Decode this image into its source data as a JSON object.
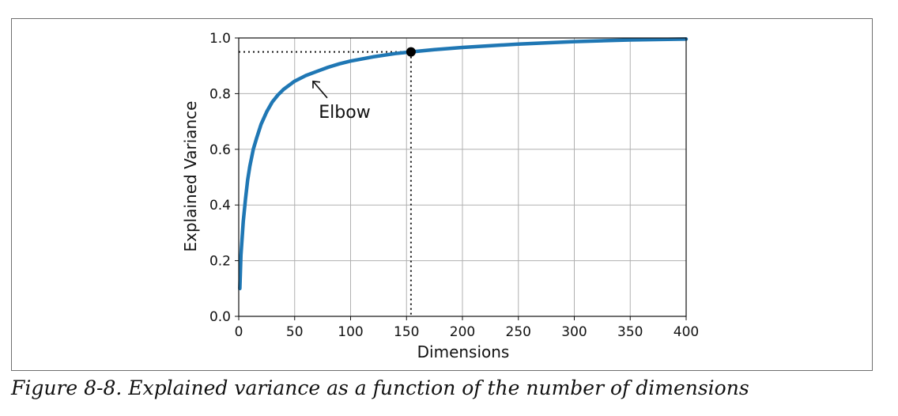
{
  "chart_data": {
    "type": "line",
    "xlabel": "Dimensions",
    "ylabel": "Explained Variance",
    "xlim": [
      0,
      400
    ],
    "ylim": [
      0.0,
      1.0
    ],
    "x_ticks": [
      "0",
      "50",
      "100",
      "150",
      "200",
      "250",
      "300",
      "350",
      "400"
    ],
    "y_ticks": [
      "0.0",
      "0.2",
      "0.4",
      "0.6",
      "0.8",
      "1.0"
    ],
    "grid": true,
    "line_color": "#1f77b4",
    "series": [
      {
        "x": [
          1,
          2,
          4,
          6,
          8,
          10,
          13,
          16,
          20,
          25,
          30,
          35,
          40,
          45,
          50,
          60,
          70,
          80,
          90,
          100,
          120,
          140,
          154,
          175,
          200,
          250,
          300,
          350,
          400
        ],
        "values": [
          0.1,
          0.22,
          0.34,
          0.42,
          0.49,
          0.54,
          0.6,
          0.64,
          0.69,
          0.735,
          0.77,
          0.795,
          0.815,
          0.83,
          0.845,
          0.865,
          0.88,
          0.895,
          0.907,
          0.917,
          0.932,
          0.944,
          0.95,
          0.958,
          0.966,
          0.978,
          0.987,
          0.993,
          0.996
        ]
      }
    ],
    "highlight_point": {
      "x": 154,
      "y": 0.95
    },
    "annotations": [
      {
        "text": "Elbow",
        "points_to": {
          "x": 65,
          "y": 0.85
        }
      }
    ]
  },
  "caption": "Figure 8-8. Explained variance as a function of the number of dimensions"
}
